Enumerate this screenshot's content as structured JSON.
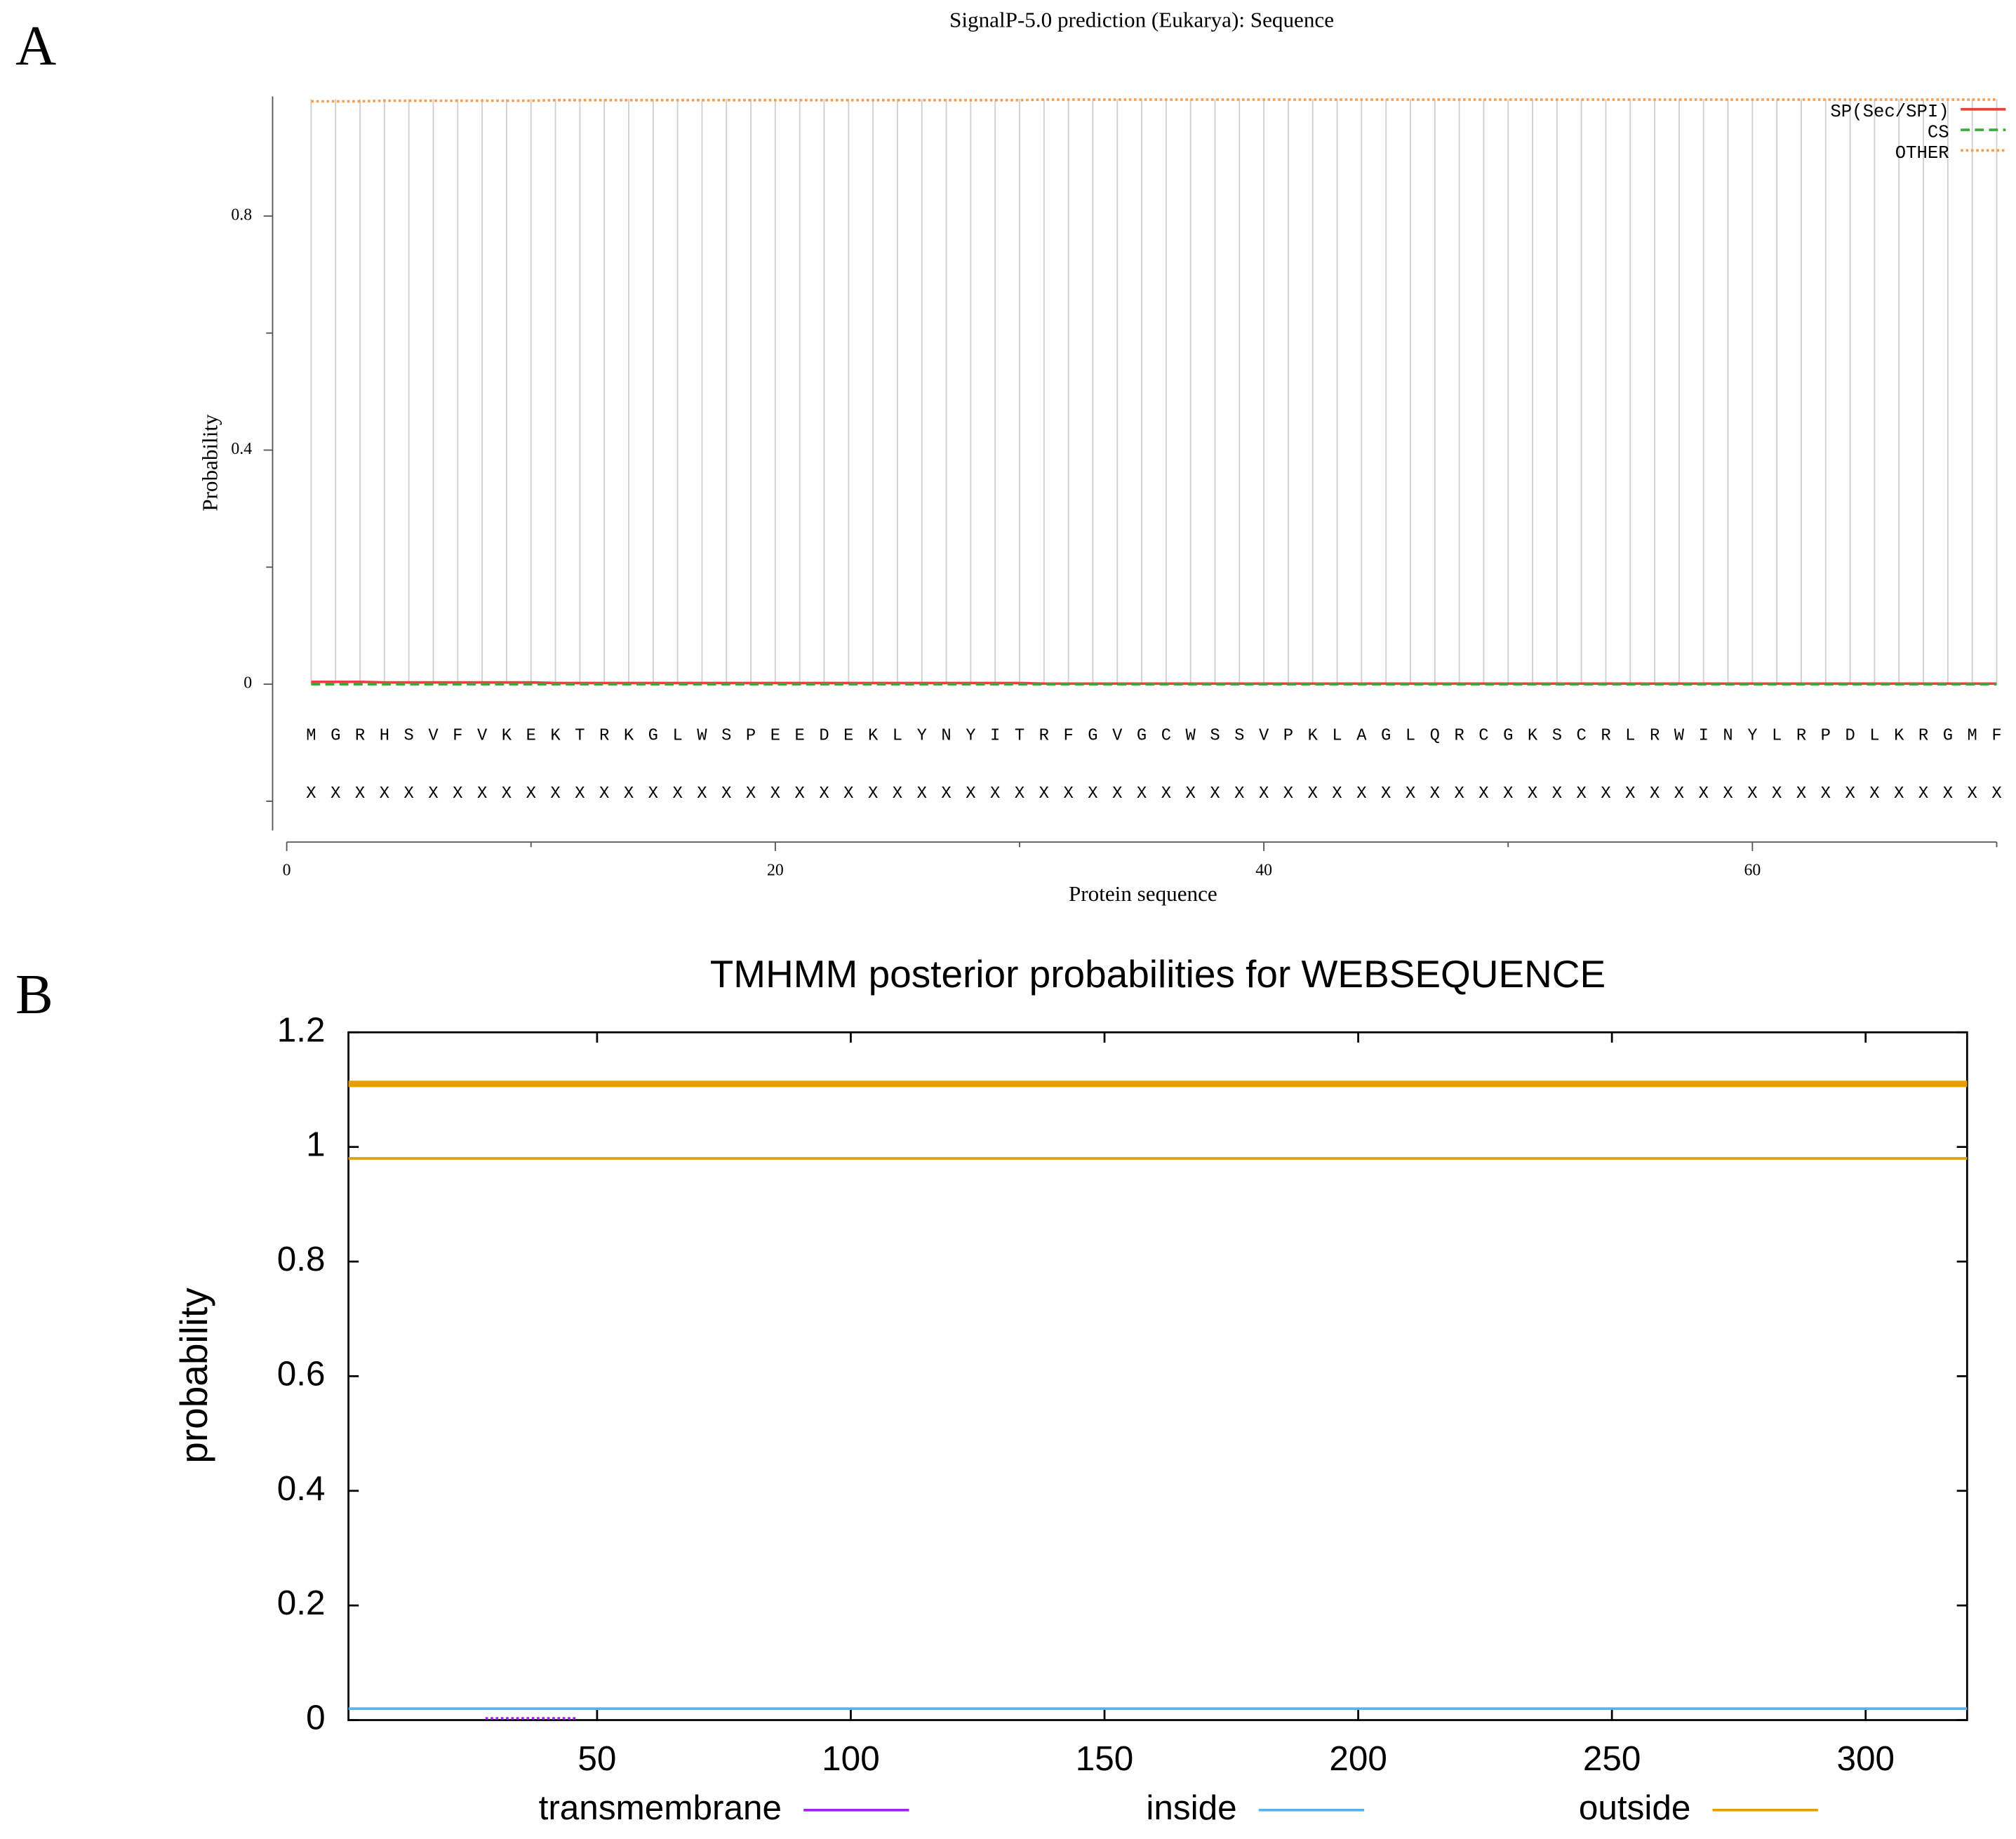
{
  "chart_data": [
    {
      "type": "line",
      "panel_label": "A",
      "title": "SignalP-5.0 prediction (Eukarya):  Sequence",
      "xlabel": "Protein sequence",
      "ylabel": "Probability",
      "xlim": [
        0,
        70
      ],
      "ylim": [
        -0.25,
        1.0
      ],
      "xticks": [
        0,
        20,
        40,
        60
      ],
      "xminor_ticks": [
        10,
        30,
        50,
        70
      ],
      "yticks": [
        0,
        0.4,
        0.8
      ],
      "yminor_ticks": [
        -0.2,
        0.2,
        0.6
      ],
      "grid": true,
      "legend": "upper right",
      "x": [
        1,
        2,
        3,
        4,
        5,
        6,
        7,
        8,
        9,
        10,
        11,
        12,
        13,
        14,
        15,
        16,
        17,
        18,
        19,
        20,
        21,
        22,
        23,
        24,
        25,
        26,
        27,
        28,
        29,
        30,
        31,
        32,
        33,
        34,
        35,
        36,
        37,
        38,
        39,
        40,
        41,
        42,
        43,
        44,
        45,
        46,
        47,
        48,
        49,
        50,
        51,
        52,
        53,
        54,
        55,
        56,
        57,
        58,
        59,
        60,
        61,
        62,
        63,
        64,
        65,
        66,
        67,
        68,
        69,
        70
      ],
      "residues": [
        "M",
        "G",
        "R",
        "H",
        "S",
        "V",
        "F",
        "V",
        "K",
        "E",
        "K",
        "T",
        "R",
        "K",
        "G",
        "L",
        "W",
        "S",
        "P",
        "E",
        "E",
        "D",
        "E",
        "K",
        "L",
        "Y",
        "N",
        "Y",
        "I",
        "T",
        "R",
        "F",
        "G",
        "V",
        "G",
        "C",
        "W",
        "S",
        "S",
        "V",
        "P",
        "K",
        "L",
        "A",
        "G",
        "L",
        "Q",
        "R",
        "C",
        "G",
        "K",
        "S",
        "C",
        "R",
        "L",
        "R",
        "W",
        "I",
        "N",
        "Y",
        "L",
        "R",
        "P",
        "D",
        "L",
        "K",
        "R",
        "G",
        "M",
        "F"
      ],
      "annotation_row": [
        "X",
        "X",
        "X",
        "X",
        "X",
        "X",
        "X",
        "X",
        "X",
        "X",
        "X",
        "X",
        "X",
        "X",
        "X",
        "X",
        "X",
        "X",
        "X",
        "X",
        "X",
        "X",
        "X",
        "X",
        "X",
        "X",
        "X",
        "X",
        "X",
        "X",
        "X",
        "X",
        "X",
        "X",
        "X",
        "X",
        "X",
        "X",
        "X",
        "X",
        "X",
        "X",
        "X",
        "X",
        "X",
        "X",
        "X",
        "X",
        "X",
        "X",
        "X",
        "X",
        "X",
        "X",
        "X",
        "X",
        "X",
        "X",
        "X",
        "X",
        "X",
        "X",
        "X",
        "X",
        "X",
        "X",
        "X",
        "X",
        "X",
        "X"
      ],
      "series": [
        {
          "name": "SP(Sec/SPI)",
          "color": "#e8403a",
          "dash": "solid",
          "values": [
            0.004,
            0.004,
            0.004,
            0.003,
            0.003,
            0.003,
            0.003,
            0.003,
            0.003,
            0.003,
            0.002,
            0.002,
            0.002,
            0.002,
            0.002,
            0.002,
            0.002,
            0.002,
            0.002,
            0.002,
            0.002,
            0.002,
            0.002,
            0.002,
            0.002,
            0.002,
            0.002,
            0.002,
            0.002,
            0.002,
            0.001,
            0.001,
            0.001,
            0.001,
            0.001,
            0.001,
            0.001,
            0.001,
            0.001,
            0.001,
            0.001,
            0.001,
            0.001,
            0.001,
            0.001,
            0.001,
            0.001,
            0.001,
            0.001,
            0.001,
            0.001,
            0.001,
            0.001,
            0.001,
            0.001,
            0.001,
            0.001,
            0.001,
            0.001,
            0.001,
            0.001,
            0.001,
            0.001,
            0.001,
            0.001,
            0.001,
            0.001,
            0.001,
            0.001,
            0.001
          ]
        },
        {
          "name": "CS",
          "color": "#3aa83a",
          "dash": "dashed",
          "values": [
            0,
            0,
            0,
            0,
            0,
            0,
            0,
            0,
            0,
            0,
            0,
            0,
            0,
            0,
            0,
            0,
            0,
            0,
            0,
            0,
            0,
            0,
            0,
            0,
            0,
            0,
            0,
            0,
            0,
            0,
            0,
            0,
            0,
            0,
            0,
            0,
            0,
            0,
            0,
            0,
            0,
            0,
            0,
            0,
            0,
            0,
            0,
            0,
            0,
            0,
            0,
            0,
            0,
            0,
            0,
            0,
            0,
            0,
            0,
            0,
            0,
            0,
            0,
            0,
            0,
            0,
            0,
            0,
            0,
            0
          ]
        },
        {
          "name": "OTHER",
          "color": "#f5a050",
          "dash": "dotted",
          "values": [
            0.996,
            0.996,
            0.996,
            0.997,
            0.997,
            0.997,
            0.997,
            0.997,
            0.997,
            0.997,
            0.998,
            0.998,
            0.998,
            0.998,
            0.998,
            0.998,
            0.998,
            0.998,
            0.998,
            0.998,
            0.998,
            0.998,
            0.998,
            0.998,
            0.998,
            0.998,
            0.998,
            0.998,
            0.998,
            0.998,
            0.999,
            0.999,
            0.999,
            0.999,
            0.999,
            0.999,
            0.999,
            0.999,
            0.999,
            0.999,
            0.999,
            0.999,
            0.999,
            0.999,
            0.999,
            0.999,
            0.999,
            0.999,
            0.999,
            0.999,
            0.999,
            0.999,
            0.999,
            0.999,
            0.999,
            0.999,
            0.999,
            0.999,
            0.999,
            0.999,
            0.999,
            0.999,
            0.999,
            0.999,
            0.999,
            0.999,
            0.999,
            0.999,
            0.999,
            0.999
          ]
        }
      ]
    },
    {
      "type": "line",
      "panel_label": "B",
      "title": "TMHMM posterior probabilities for WEBSEQUENCE",
      "ylabel": "probability",
      "xlim": [
        1,
        320
      ],
      "ylim": [
        0,
        1.2
      ],
      "xticks": [
        50,
        100,
        150,
        200,
        250,
        300
      ],
      "yticks": [
        0,
        0.2,
        0.4,
        0.6,
        0.8,
        1,
        1.2
      ],
      "legend": "bottom",
      "topology": {
        "x": [
          1,
          320
        ],
        "values": [
          1.11,
          1.11
        ],
        "color": "#e69f00"
      },
      "series": [
        {
          "name": "transmembrane",
          "color": "#a020f0",
          "dash": "dotted",
          "x": [
            28,
            46
          ],
          "values": [
            0.003,
            0.003
          ]
        },
        {
          "name": "inside",
          "color": "#56b4e9",
          "dash": "solid",
          "x": [
            1,
            320
          ],
          "values": [
            0.02,
            0.02
          ]
        },
        {
          "name": "outside",
          "color": "#e69f00",
          "dash": "solid",
          "x": [
            1,
            320
          ],
          "values": [
            0.98,
            0.98
          ]
        }
      ]
    }
  ]
}
